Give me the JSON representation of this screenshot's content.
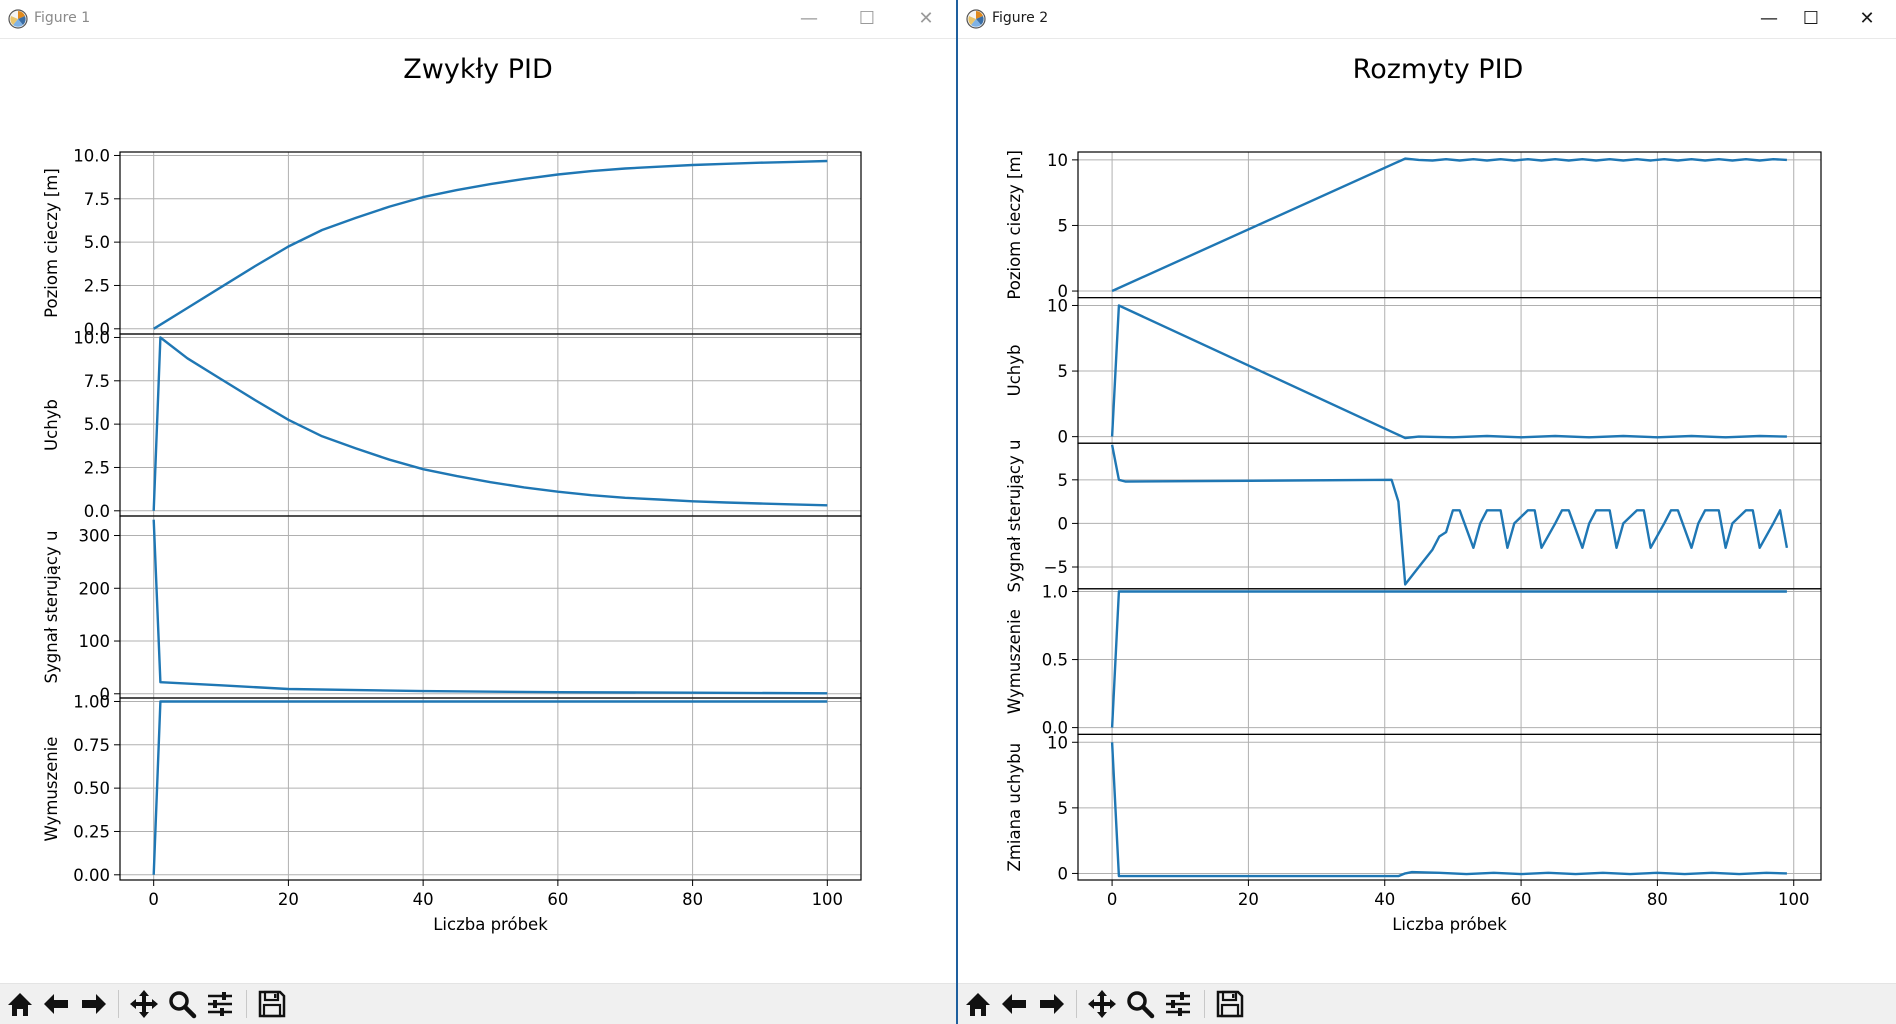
{
  "windows": [
    {
      "title": "Figure 1",
      "controls": {
        "minimize": "—",
        "maximize": "☐",
        "close": "✕"
      },
      "chart_data": {
        "type": "line",
        "title": "Zwykły PID",
        "xlabel": "Liczba próbek",
        "xlim": [
          -5,
          105
        ],
        "xticks": [
          0,
          20,
          40,
          60,
          80,
          100
        ],
        "xtick_labels": [
          "0",
          "20",
          "40",
          "60",
          "80",
          "100"
        ],
        "grid": true,
        "color": "#1f77b4",
        "subplots": [
          {
            "ylabel": "Poziom cieczy [m]",
            "ylim": [
              -0.3,
              10.2
            ],
            "yticks": [
              0,
              2.5,
              5,
              7.5,
              10
            ],
            "ytick_labels": [
              "0.0",
              "2.5",
              "5.0",
              "7.5",
              "10.0"
            ],
            "x": [
              0,
              5,
              10,
              15,
              20,
              25,
              30,
              35,
              40,
              45,
              50,
              55,
              60,
              65,
              70,
              75,
              80,
              85,
              90,
              95,
              100
            ],
            "y": [
              0,
              1.2,
              2.4,
              3.6,
              4.75,
              5.7,
              6.4,
              7.05,
              7.6,
              8.0,
              8.35,
              8.65,
              8.9,
              9.1,
              9.25,
              9.35,
              9.45,
              9.52,
              9.58,
              9.63,
              9.68
            ]
          },
          {
            "ylabel": "Uchyb",
            "ylim": [
              -0.3,
              10.2
            ],
            "yticks": [
              0,
              2.5,
              5,
              7.5,
              10
            ],
            "ytick_labels": [
              "0.0",
              "2.5",
              "5.0",
              "7.5",
              "10.0"
            ],
            "x": [
              0,
              1,
              5,
              10,
              15,
              20,
              25,
              30,
              35,
              40,
              45,
              50,
              55,
              60,
              65,
              70,
              75,
              80,
              85,
              90,
              95,
              100
            ],
            "y": [
              0,
              10,
              8.8,
              7.6,
              6.4,
              5.25,
              4.3,
              3.6,
              2.95,
              2.4,
              2.0,
              1.65,
              1.35,
              1.1,
              0.9,
              0.75,
              0.65,
              0.55,
              0.48,
              0.42,
              0.37,
              0.32
            ]
          },
          {
            "ylabel": "Sygnał sterujący u",
            "ylim": [
              -8,
              337
            ],
            "yticks": [
              0,
              100,
              200,
              300
            ],
            "ytick_labels": [
              "0",
              "100",
              "200",
              "300"
            ],
            "x": [
              0,
              1,
              10,
              20,
              40,
              60,
              80,
              100
            ],
            "y": [
              330,
              22,
              16,
              9,
              5,
              3,
              2,
              1
            ]
          },
          {
            "ylabel": "Wymuszenie",
            "ylim": [
              -0.03,
              1.02
            ],
            "yticks": [
              0,
              0.25,
              0.5,
              0.75,
              1
            ],
            "ytick_labels": [
              "0.00",
              "0.25",
              "0.50",
              "0.75",
              "1.00"
            ],
            "x": [
              0,
              1,
              100
            ],
            "y": [
              0,
              1,
              1
            ]
          }
        ]
      }
    },
    {
      "title": "Figure 2",
      "controls": {
        "minimize": "—",
        "maximize": "☐",
        "close": "✕"
      },
      "chart_data": {
        "type": "line",
        "title": "Rozmyty PID",
        "xlabel": "Liczba próbek",
        "xlim": [
          -5,
          104
        ],
        "xticks": [
          0,
          20,
          40,
          60,
          80,
          100
        ],
        "xtick_labels": [
          "0",
          "20",
          "40",
          "60",
          "80",
          "100"
        ],
        "grid": true,
        "color": "#1f77b4",
        "subplots": [
          {
            "ylabel": "Poziom cieczy [m]",
            "ylim": [
              -0.5,
              10.6
            ],
            "yticks": [
              0,
              5,
              10
            ],
            "ytick_labels": [
              "0",
              "5",
              "10"
            ],
            "x": [
              0,
              43,
              45,
              47,
              49,
              51,
              53,
              55,
              57,
              59,
              61,
              63,
              65,
              67,
              69,
              71,
              73,
              75,
              77,
              79,
              81,
              83,
              85,
              87,
              89,
              91,
              93,
              95,
              97,
              99
            ],
            "y": [
              0,
              10.1,
              10.0,
              9.95,
              10.05,
              9.95,
              10.05,
              9.95,
              10.05,
              9.95,
              10.05,
              9.95,
              10.05,
              9.95,
              10.05,
              9.95,
              10.05,
              9.95,
              10.05,
              9.95,
              10.05,
              9.95,
              10.05,
              9.95,
              10.05,
              9.95,
              10.05,
              9.95,
              10.05,
              10.0
            ]
          },
          {
            "ylabel": "Uchyb",
            "ylim": [
              -0.5,
              10.6
            ],
            "yticks": [
              0,
              5,
              10
            ],
            "ytick_labels": [
              "0",
              "5",
              "10"
            ],
            "x": [
              0,
              1,
              43,
              45,
              50,
              55,
              60,
              65,
              70,
              75,
              80,
              85,
              90,
              95,
              99
            ],
            "y": [
              0,
              10,
              -0.1,
              0,
              -0.05,
              0.05,
              -0.05,
              0.05,
              -0.05,
              0.05,
              -0.05,
              0.05,
              -0.05,
              0.05,
              0
            ],
            "y_precision_note": ""
          },
          {
            "ylabel": "Sygnał sterujący u",
            "ylim": [
              -7.5,
              9.2
            ],
            "yticks": [
              -5,
              0,
              5
            ],
            "ytick_labels": [
              "−5",
              "0",
              "5"
            ],
            "x": [
              0,
              1,
              2,
              41,
              42,
              43,
              45,
              47,
              48,
              49,
              50,
              51,
              53,
              54,
              55,
              57,
              58,
              59,
              61,
              62,
              63,
              65,
              66,
              67,
              69,
              70,
              71,
              73,
              74,
              75,
              77,
              78,
              79,
              81,
              82,
              83,
              85,
              86,
              87,
              89,
              90,
              91,
              93,
              94,
              95,
              97,
              98,
              99
            ],
            "y": [
              9,
              5,
              4.8,
              5,
              2.5,
              -7,
              -5,
              -3,
              -1.5,
              -1,
              1.5,
              1.5,
              -2.8,
              0,
              1.5,
              1.5,
              -2.8,
              0,
              1.5,
              1.5,
              -2.8,
              0,
              1.5,
              1.5,
              -2.8,
              0,
              1.5,
              1.5,
              -2.8,
              0,
              1.5,
              1.5,
              -2.8,
              0,
              1.5,
              1.5,
              -2.8,
              0,
              1.5,
              1.5,
              -2.8,
              0,
              1.5,
              1.5,
              -2.8,
              0,
              1.5,
              -2.8
            ]
          },
          {
            "ylabel": "Wymuszenie",
            "ylim": [
              -0.05,
              1.02
            ],
            "yticks": [
              0,
              0.5,
              1
            ],
            "ytick_labels": [
              "0.0",
              "0.5",
              "1.0"
            ],
            "x": [
              0,
              1,
              99
            ],
            "y": [
              0,
              1,
              1
            ]
          },
          {
            "ylabel": "Zmiana uchybu",
            "ylim": [
              -0.5,
              10.6
            ],
            "yticks": [
              0,
              5,
              10
            ],
            "ytick_labels": [
              "0",
              "5",
              "10"
            ],
            "x": [
              0,
              1,
              42,
              43,
              44,
              48,
              52,
              56,
              60,
              64,
              68,
              72,
              76,
              80,
              84,
              88,
              92,
              96,
              99
            ],
            "y": [
              10,
              -0.2,
              -0.2,
              0,
              0.1,
              0.05,
              -0.05,
              0.05,
              -0.05,
              0.05,
              -0.05,
              0.05,
              -0.05,
              0.05,
              -0.05,
              0.05,
              -0.05,
              0.05,
              0
            ]
          }
        ]
      }
    }
  ],
  "toolbar": {
    "buttons": [
      "home-icon",
      "back-arrow-icon",
      "forward-arrow-icon",
      "pan-icon",
      "zoom-icon",
      "configure-subplots-icon",
      "save-icon"
    ]
  }
}
